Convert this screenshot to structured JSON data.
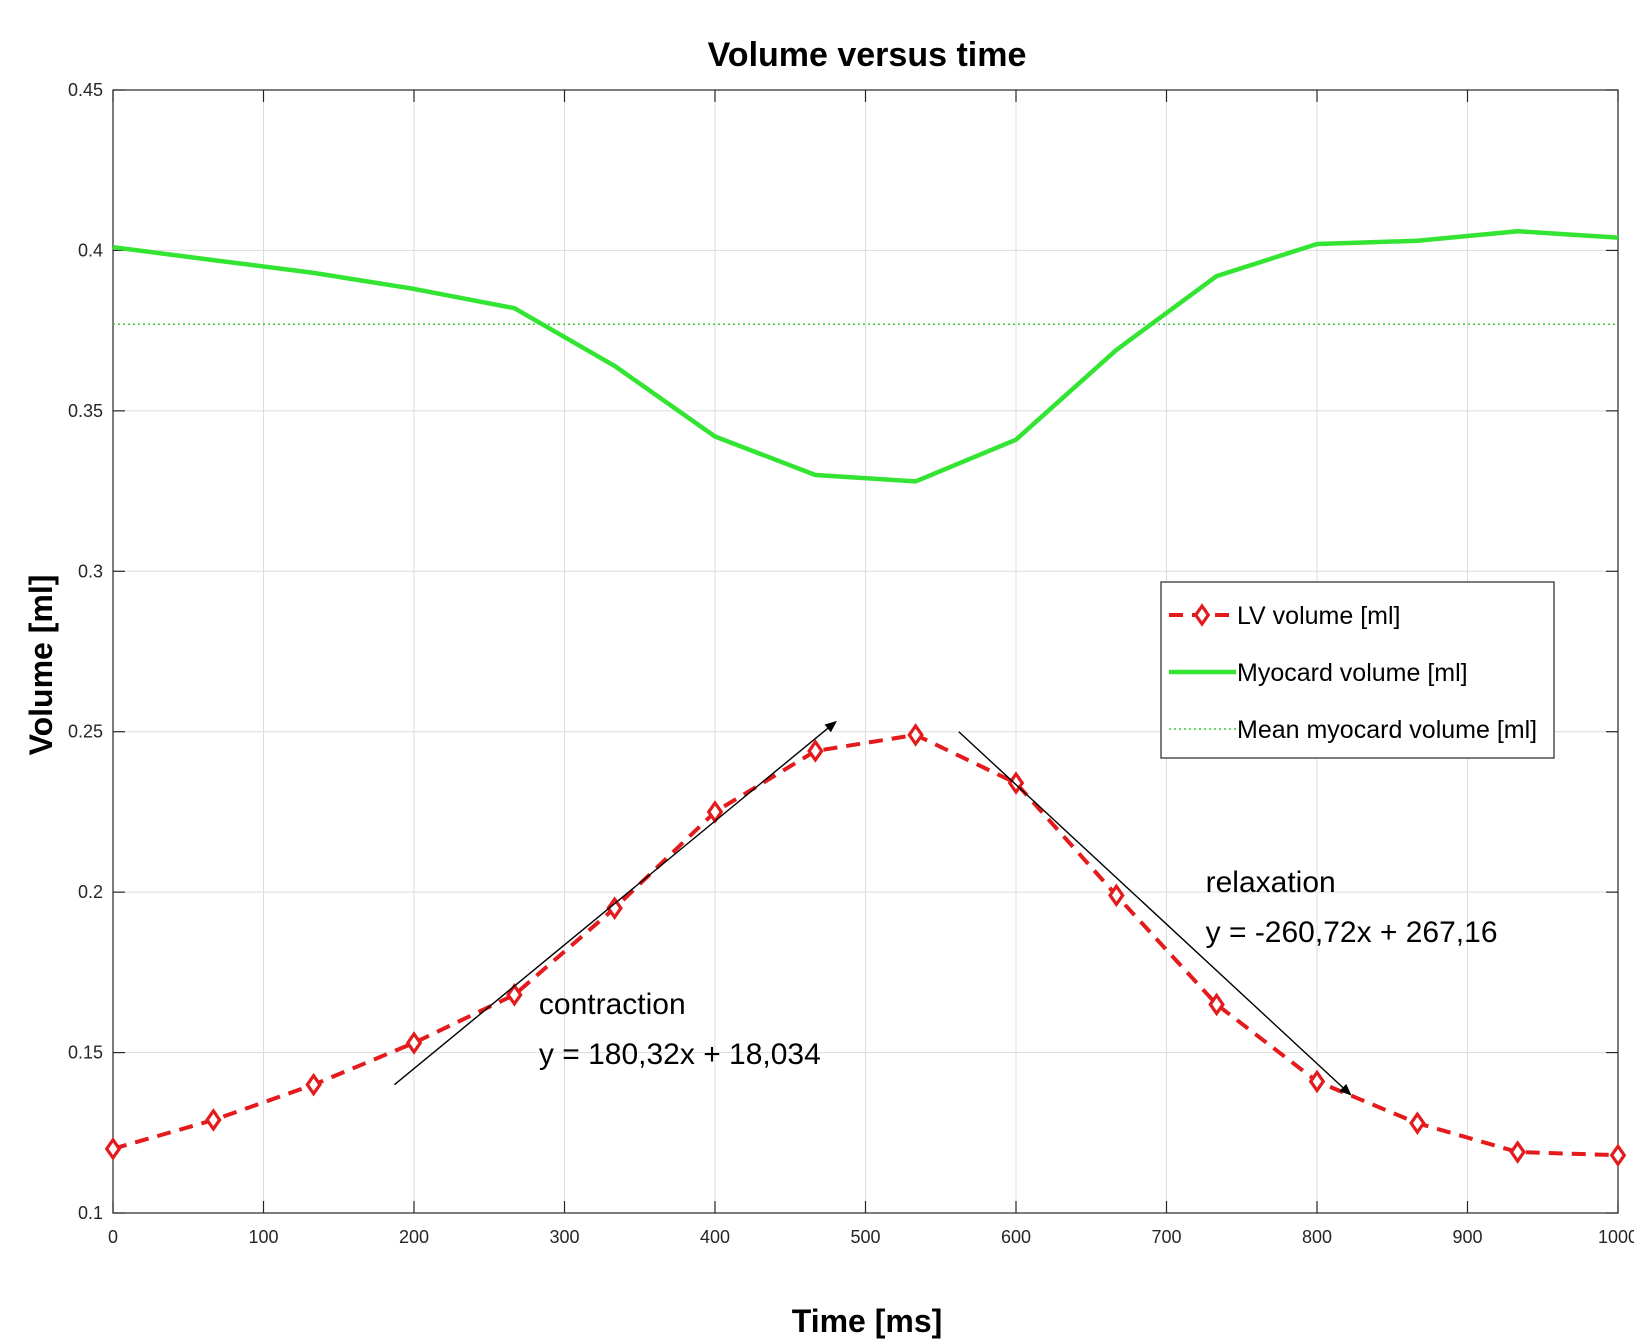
{
  "chart_data": {
    "type": "line",
    "title": "Volume versus time",
    "xlabel": "Time [ms]",
    "ylabel": "Volume [ml]",
    "xlim": [
      0,
      1000
    ],
    "ylim": [
      0.1,
      0.45
    ],
    "xticks": [
      0,
      100,
      200,
      300,
      400,
      500,
      600,
      700,
      800,
      900,
      1000
    ],
    "yticks": [
      0.1,
      0.15,
      0.2,
      0.25,
      0.3,
      0.35,
      0.4,
      0.45
    ],
    "xtick_labels": [
      "0",
      "100",
      "200",
      "300",
      "400",
      "500",
      "600",
      "700",
      "800",
      "900",
      "1000"
    ],
    "ytick_labels": [
      "0.1",
      "0.15",
      "0.2",
      "0.25",
      "0.3",
      "0.35",
      "0.4",
      "0.45"
    ],
    "grid": true,
    "legend_position": "right-middle",
    "colors": {
      "lv": "#e41a1c",
      "myo": "#33e433",
      "mean": "#33cc33"
    },
    "series": [
      {
        "name": "LV volume [ml]",
        "style": "dashed-diamond",
        "x": [
          0,
          66.7,
          133.3,
          200,
          266.7,
          333.3,
          400,
          466.7,
          533.3,
          600,
          666.7,
          733.3,
          800,
          866.7,
          933.3,
          1000
        ],
        "y": [
          0.12,
          0.129,
          0.14,
          0.153,
          0.168,
          0.195,
          0.225,
          0.244,
          0.249,
          0.234,
          0.199,
          0.165,
          0.141,
          0.128,
          0.119,
          0.118
        ]
      },
      {
        "name": "Myocard volume [ml]",
        "style": "solid",
        "x": [
          0,
          66.7,
          133.3,
          200,
          266.7,
          333.3,
          400,
          466.7,
          533.3,
          600,
          666.7,
          733.3,
          800,
          866.7,
          933.3,
          1000
        ],
        "y": [
          0.401,
          0.397,
          0.393,
          0.388,
          0.382,
          0.364,
          0.342,
          0.33,
          0.328,
          0.341,
          0.369,
          0.392,
          0.402,
          0.403,
          0.406,
          0.404
        ]
      },
      {
        "name": "Mean myocard volume [ml]",
        "style": "dotted",
        "x": [
          0,
          1000
        ],
        "y": [
          0.377,
          0.377
        ]
      }
    ],
    "annotations": [
      {
        "lines": [
          "contraction",
          "y = 180,32x + 18,034"
        ],
        "x": 283,
        "y": 0.162
      },
      {
        "lines": [
          "relaxation",
          "y = -260,72x + 267,16"
        ],
        "x": 726,
        "y": 0.2
      }
    ],
    "arrows": [
      {
        "from": [
          187,
          0.14
        ],
        "to": [
          480,
          0.253
        ]
      },
      {
        "from": [
          562,
          0.25
        ],
        "to": [
          822,
          0.137
        ]
      }
    ]
  }
}
